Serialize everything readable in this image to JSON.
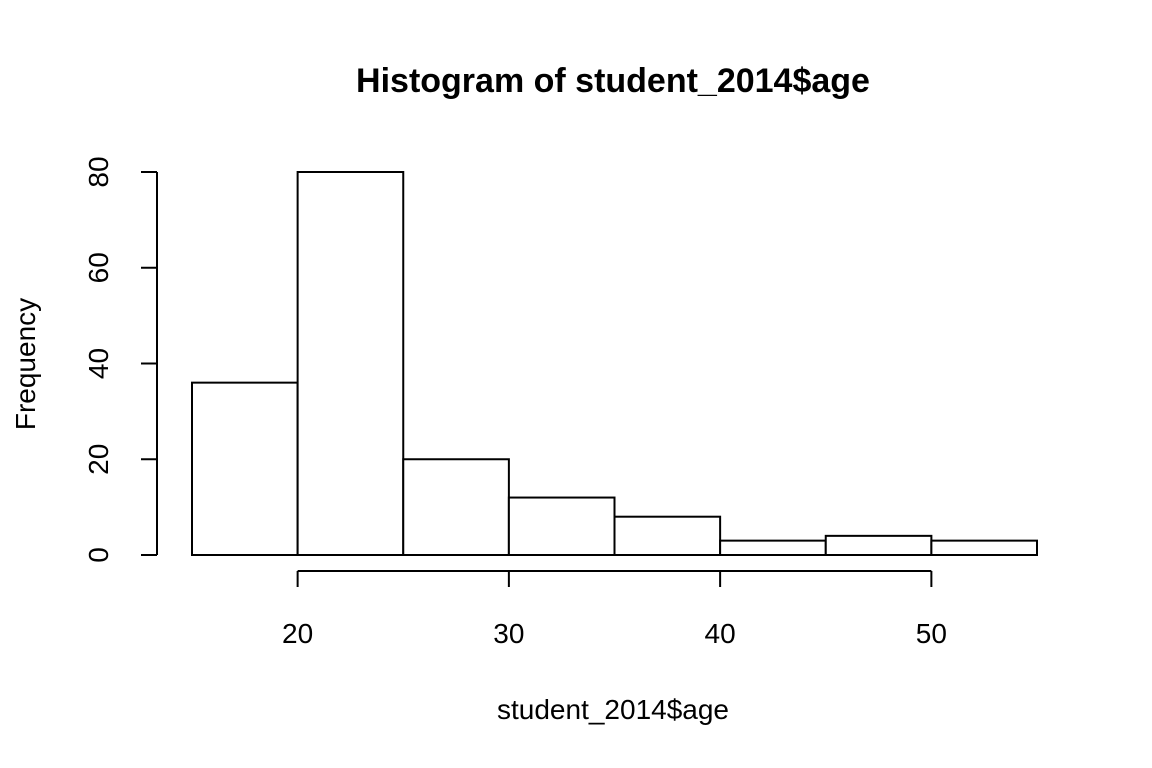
{
  "chart_data": {
    "type": "bar",
    "title": "Histogram of student_2014$age",
    "xlabel": "student_2014$age",
    "ylabel": "Frequency",
    "bins": [
      {
        "start": 15,
        "end": 20,
        "count": 36
      },
      {
        "start": 20,
        "end": 25,
        "count": 80
      },
      {
        "start": 25,
        "end": 30,
        "count": 20
      },
      {
        "start": 30,
        "end": 35,
        "count": 12
      },
      {
        "start": 35,
        "end": 40,
        "count": 8
      },
      {
        "start": 40,
        "end": 45,
        "count": 3
      },
      {
        "start": 45,
        "end": 50,
        "count": 4
      },
      {
        "start": 50,
        "end": 55,
        "count": 3
      }
    ],
    "x_ticks": [
      20,
      30,
      40,
      50
    ],
    "y_ticks": [
      0,
      20,
      40,
      60,
      80
    ],
    "xlim": [
      15,
      55
    ],
    "ylim": [
      0,
      80
    ],
    "grid": false,
    "legend": "none"
  }
}
